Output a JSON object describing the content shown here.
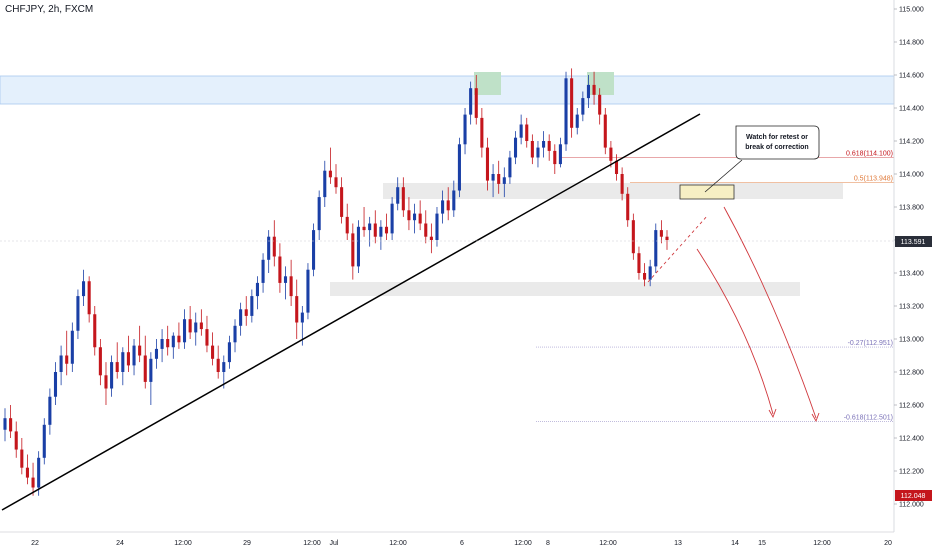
{
  "chart_data": {
    "type": "candlestick",
    "symbol_label": "CHFJPY, 2h, FXCM",
    "y_axis_ticks": [
      "115.000",
      "114.800",
      "114.600",
      "114.400",
      "114.200",
      "114.000",
      "113.800",
      "113.600",
      "113.400",
      "113.200",
      "113.000",
      "112.800",
      "112.600",
      "112.400",
      "112.200",
      "112.000"
    ],
    "ylim": [
      111.9,
      115.05
    ],
    "x_axis_ticks": [
      "22",
      "24",
      "12:00",
      "29",
      "12:00",
      "Jul",
      "12:00",
      "6",
      "12:00",
      "8",
      "12:00",
      "13",
      "14",
      "15",
      "12:00",
      "20"
    ],
    "current_price": "113.591",
    "last_low_price": "112.048",
    "colors": {
      "up": "#1a3fa6",
      "down": "#c4161c",
      "trendline": "#000000",
      "resistance_zone": "#cde3f9",
      "top_marker": "#b9dfc3",
      "callout_fill": "#f5efc0",
      "projection": "#d0383d",
      "fib_618": "#c4161c",
      "fib_50": "#e07a3a",
      "fib_ext": "#7b72b8"
    },
    "fib_levels": [
      {
        "label": "0.618(114.100)",
        "value": 114.1
      },
      {
        "label": "0.5(113.948)",
        "value": 113.948
      },
      {
        "label": "-0.27(112.951)",
        "value": 112.951
      },
      {
        "label": "-0.618(112.501)",
        "value": 112.501
      }
    ],
    "annotations": [
      {
        "text": [
          "Watch for retest or",
          "break of correction"
        ]
      }
    ],
    "candles": [
      [
        112.45,
        112.58,
        112.38,
        112.52
      ],
      [
        112.52,
        112.6,
        112.4,
        112.44
      ],
      [
        112.44,
        112.5,
        112.28,
        112.33
      ],
      [
        112.33,
        112.4,
        112.18,
        112.22
      ],
      [
        112.22,
        112.3,
        112.12,
        112.16
      ],
      [
        112.16,
        112.25,
        112.05,
        112.1
      ],
      [
        112.1,
        112.32,
        112.05,
        112.28
      ],
      [
        112.28,
        112.52,
        112.24,
        112.48
      ],
      [
        112.48,
        112.7,
        112.42,
        112.65
      ],
      [
        112.65,
        112.86,
        112.6,
        112.8
      ],
      [
        112.8,
        112.96,
        112.72,
        112.9
      ],
      [
        112.9,
        113.05,
        112.78,
        112.85
      ],
      [
        112.85,
        113.1,
        112.8,
        113.05
      ],
      [
        113.05,
        113.3,
        113.0,
        113.26
      ],
      [
        113.26,
        113.42,
        113.2,
        113.35
      ],
      [
        113.35,
        113.38,
        113.1,
        113.15
      ],
      [
        113.15,
        113.2,
        112.9,
        112.95
      ],
      [
        112.95,
        113.0,
        112.72,
        112.78
      ],
      [
        112.78,
        112.86,
        112.6,
        112.7
      ],
      [
        112.7,
        112.9,
        112.65,
        112.86
      ],
      [
        112.86,
        112.98,
        112.76,
        112.8
      ],
      [
        112.8,
        112.95,
        112.72,
        112.92
      ],
      [
        112.92,
        113.02,
        112.8,
        112.84
      ],
      [
        112.84,
        113.0,
        112.78,
        112.96
      ],
      [
        112.96,
        113.08,
        112.86,
        112.9
      ],
      [
        112.9,
        113.02,
        112.7,
        112.74
      ],
      [
        112.74,
        112.92,
        112.6,
        112.88
      ],
      [
        112.88,
        113.0,
        112.82,
        112.94
      ],
      [
        112.94,
        113.06,
        112.86,
        113.0
      ],
      [
        113.0,
        113.08,
        112.9,
        112.95
      ],
      [
        112.95,
        113.04,
        112.88,
        113.02
      ],
      [
        113.02,
        113.1,
        112.94,
        112.98
      ],
      [
        112.98,
        113.18,
        112.94,
        113.12
      ],
      [
        113.12,
        113.2,
        113.0,
        113.04
      ],
      [
        113.04,
        113.16,
        112.96,
        113.1
      ],
      [
        113.1,
        113.18,
        113.02,
        113.06
      ],
      [
        113.06,
        113.14,
        112.92,
        112.96
      ],
      [
        112.96,
        113.04,
        112.84,
        112.88
      ],
      [
        112.88,
        112.96,
        112.76,
        112.8
      ],
      [
        112.8,
        112.9,
        112.7,
        112.86
      ],
      [
        112.86,
        113.02,
        112.82,
        112.98
      ],
      [
        112.98,
        113.12,
        112.92,
        113.08
      ],
      [
        113.08,
        113.22,
        113.02,
        113.18
      ],
      [
        113.18,
        113.26,
        113.08,
        113.14
      ],
      [
        113.14,
        113.3,
        113.1,
        113.26
      ],
      [
        113.26,
        113.38,
        113.18,
        113.34
      ],
      [
        113.34,
        113.52,
        113.28,
        113.48
      ],
      [
        113.48,
        113.66,
        113.4,
        113.62
      ],
      [
        113.62,
        113.72,
        113.44,
        113.5
      ],
      [
        113.5,
        113.58,
        113.28,
        113.34
      ],
      [
        113.34,
        113.44,
        113.24,
        113.38
      ],
      [
        113.38,
        113.48,
        113.2,
        113.26
      ],
      [
        113.26,
        113.36,
        113.0,
        113.1
      ],
      [
        113.1,
        113.2,
        112.96,
        113.16
      ],
      [
        113.16,
        113.46,
        113.12,
        113.42
      ],
      [
        113.42,
        113.7,
        113.38,
        113.66
      ],
      [
        113.66,
        113.9,
        113.6,
        113.86
      ],
      [
        113.86,
        114.08,
        113.8,
        114.02
      ],
      [
        114.02,
        114.16,
        113.94,
        113.98
      ],
      [
        113.98,
        114.06,
        113.88,
        113.92
      ],
      [
        113.92,
        113.98,
        113.7,
        113.74
      ],
      [
        113.74,
        113.82,
        113.6,
        113.64
      ],
      [
        113.64,
        113.7,
        113.36,
        113.44
      ],
      [
        113.44,
        113.72,
        113.4,
        113.68
      ],
      [
        113.68,
        113.8,
        113.62,
        113.66
      ],
      [
        113.66,
        113.74,
        113.56,
        113.7
      ],
      [
        113.7,
        113.78,
        113.58,
        113.62
      ],
      [
        113.62,
        113.72,
        113.54,
        113.68
      ],
      [
        113.68,
        113.76,
        113.6,
        113.64
      ],
      [
        113.64,
        113.86,
        113.6,
        113.82
      ],
      [
        113.82,
        113.98,
        113.78,
        113.92
      ],
      [
        113.92,
        113.98,
        113.74,
        113.78
      ],
      [
        113.78,
        113.86,
        113.66,
        113.72
      ],
      [
        113.72,
        113.82,
        113.64,
        113.76
      ],
      [
        113.76,
        113.84,
        113.66,
        113.7
      ],
      [
        113.7,
        113.78,
        113.58,
        113.62
      ],
      [
        113.62,
        113.7,
        113.52,
        113.6
      ],
      [
        113.6,
        113.8,
        113.56,
        113.76
      ],
      [
        113.76,
        113.9,
        113.7,
        113.84
      ],
      [
        113.84,
        113.92,
        113.72,
        113.78
      ],
      [
        113.78,
        113.96,
        113.74,
        113.9
      ],
      [
        113.9,
        114.22,
        113.86,
        114.18
      ],
      [
        114.18,
        114.4,
        114.12,
        114.36
      ],
      [
        114.36,
        114.56,
        114.3,
        114.52
      ],
      [
        114.52,
        114.6,
        114.3,
        114.34
      ],
      [
        114.34,
        114.4,
        114.1,
        114.16
      ],
      [
        114.16,
        114.22,
        113.9,
        113.96
      ],
      [
        113.96,
        114.06,
        113.86,
        114.0
      ],
      [
        114.0,
        114.08,
        113.88,
        113.94
      ],
      [
        113.94,
        114.04,
        113.86,
        113.98
      ],
      [
        113.98,
        114.14,
        113.94,
        114.1
      ],
      [
        114.1,
        114.26,
        114.06,
        114.22
      ],
      [
        114.22,
        114.36,
        114.18,
        114.3
      ],
      [
        114.3,
        114.34,
        114.16,
        114.2
      ],
      [
        114.2,
        114.24,
        114.06,
        114.1
      ],
      [
        114.1,
        114.2,
        114.04,
        114.16
      ],
      [
        114.16,
        114.26,
        114.1,
        114.2
      ],
      [
        114.2,
        114.24,
        114.08,
        114.14
      ],
      [
        114.14,
        114.18,
        114.0,
        114.06
      ],
      [
        114.06,
        114.22,
        114.04,
        114.18
      ],
      [
        114.18,
        114.62,
        114.14,
        114.58
      ],
      [
        114.58,
        114.64,
        114.22,
        114.28
      ],
      [
        114.28,
        114.4,
        114.24,
        114.36
      ],
      [
        114.36,
        114.5,
        114.32,
        114.46
      ],
      [
        114.46,
        114.6,
        114.4,
        114.54
      ],
      [
        114.54,
        114.62,
        114.42,
        114.48
      ],
      [
        114.48,
        114.52,
        114.3,
        114.36
      ],
      [
        114.36,
        114.4,
        114.12,
        114.16
      ],
      [
        114.16,
        114.2,
        114.04,
        114.08
      ],
      [
        114.08,
        114.12,
        113.96,
        114.0
      ],
      [
        114.0,
        114.04,
        113.84,
        113.88
      ],
      [
        113.88,
        113.92,
        113.68,
        113.72
      ],
      [
        113.72,
        113.76,
        113.48,
        113.52
      ],
      [
        113.52,
        113.56,
        113.36,
        113.4
      ],
      [
        113.4,
        113.46,
        113.32,
        113.36
      ],
      [
        113.36,
        113.48,
        113.32,
        113.44
      ],
      [
        113.44,
        113.7,
        113.4,
        113.66
      ],
      [
        113.66,
        113.72,
        113.58,
        113.62
      ],
      [
        113.62,
        113.66,
        113.54,
        113.6
      ]
    ]
  }
}
